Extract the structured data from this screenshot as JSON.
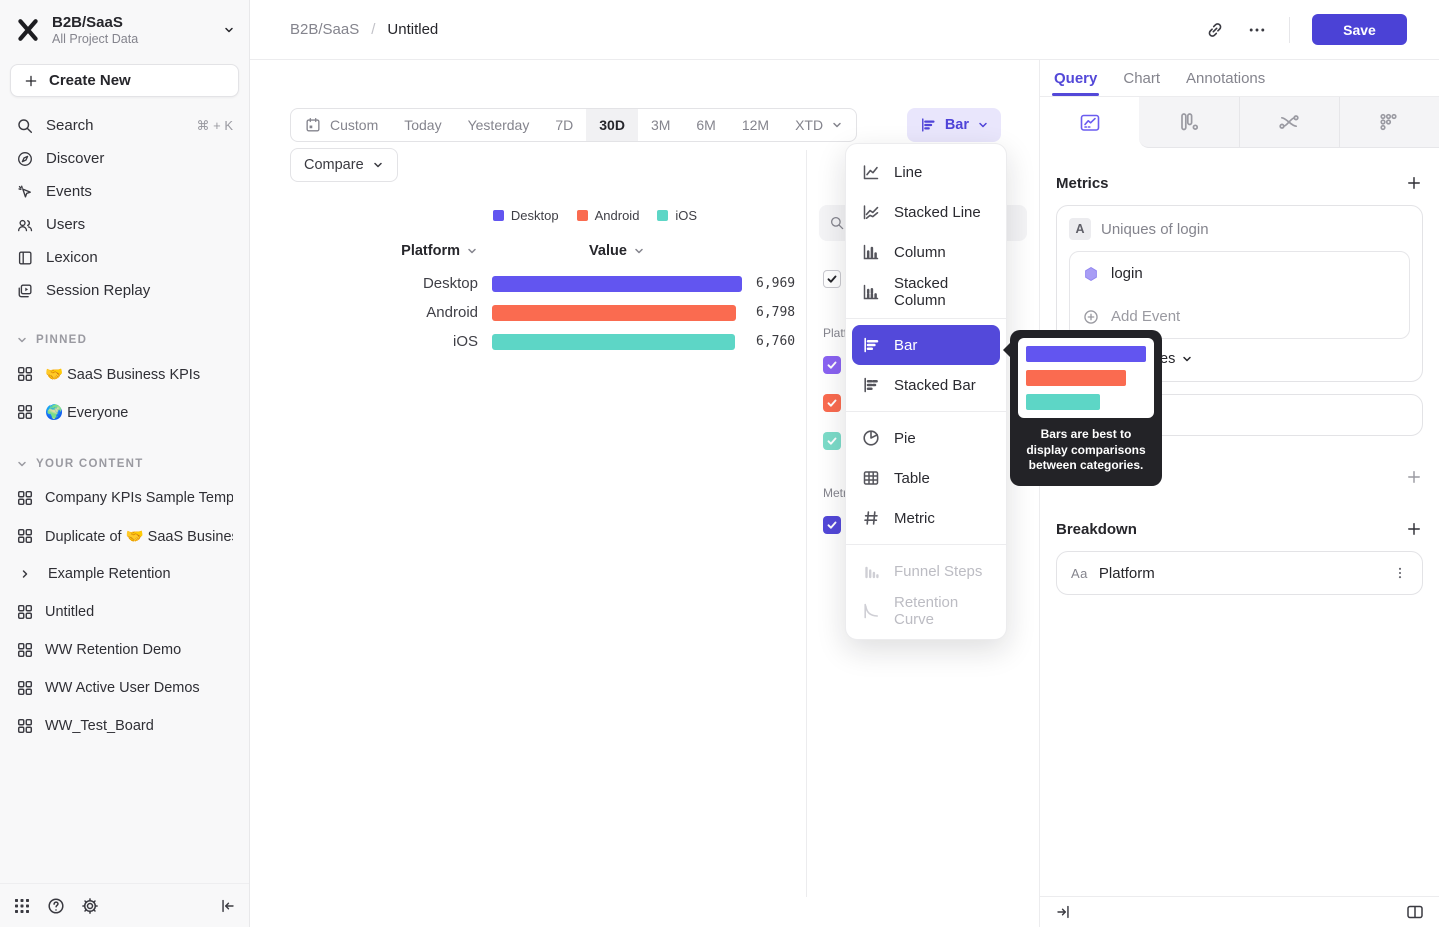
{
  "app": {
    "workspace_name": "B2B/SaaS",
    "workspace_subtitle": "All Project Data",
    "create_new_label": "Create New"
  },
  "sidebar": {
    "nav": [
      {
        "label": "Search",
        "shortcut": "⌘ + K"
      },
      {
        "label": "Discover"
      },
      {
        "label": "Events"
      },
      {
        "label": "Users"
      },
      {
        "label": "Lexicon"
      },
      {
        "label": "Session Replay"
      }
    ],
    "pinned_title": "PINNED",
    "pinned": [
      {
        "label": "🤝 SaaS Business KPIs"
      },
      {
        "label": "🌍 Everyone"
      }
    ],
    "your_content_title": "YOUR CONTENT",
    "content": [
      {
        "label": "Company KPIs Sample Templat"
      },
      {
        "label": "Duplicate of 🤝 SaaS Business"
      },
      {
        "label": "Example Retention"
      },
      {
        "label": "Untitled"
      },
      {
        "label": "WW Retention Demo"
      },
      {
        "label": "WW Active User Demos"
      },
      {
        "label": "WW_Test_Board"
      }
    ]
  },
  "topbar": {
    "breadcrumb_root": "B2B/SaaS",
    "breadcrumb_separator": "/",
    "breadcrumb_current": "Untitled",
    "save_label": "Save"
  },
  "toolbar": {
    "date_ranges": [
      "Custom",
      "Today",
      "Yesterday",
      "7D",
      "30D",
      "3M",
      "6M",
      "12M",
      "XTD"
    ],
    "selected_range": "30D",
    "chart_type_label": "Bar",
    "compare_label": "Compare"
  },
  "chart_data": {
    "type": "bar",
    "orientation": "horizontal",
    "metric": "Uniques of login",
    "columns": [
      "Platform",
      "Value"
    ],
    "categories": [
      "Desktop",
      "Android",
      "iOS"
    ],
    "values": [
      6969,
      6798,
      6760
    ],
    "value_labels": [
      "6,969",
      "6,798",
      "6,760"
    ],
    "legend": [
      "Desktop",
      "Android",
      "iOS"
    ],
    "series_colors": [
      "#6255F0",
      "#FA6B50",
      "#5DD6C6"
    ],
    "xlim": [
      0,
      6969
    ]
  },
  "legend_panel": {
    "platform_label": "Platform",
    "metrics_label": "Metrics"
  },
  "chart_menu": {
    "items": [
      {
        "label": "Line"
      },
      {
        "label": "Stacked Line"
      },
      {
        "label": "Column"
      },
      {
        "label": "Stacked Column"
      },
      {
        "label": "Bar",
        "selected": true
      },
      {
        "label": "Stacked Bar"
      },
      {
        "label": "Pie"
      },
      {
        "label": "Table"
      },
      {
        "label": "Metric"
      },
      {
        "label": "Funnel Steps",
        "disabled": true
      },
      {
        "label": "Retention Curve",
        "disabled": true
      }
    ],
    "tooltip_text": "Bars are best to display comparisons between categories."
  },
  "query_panel": {
    "tabs": [
      "Query",
      "Chart",
      "Annotations"
    ],
    "active_tab": "Query",
    "metrics_title": "Metrics",
    "metric_row_letter": "A",
    "metric_row_label": "Uniques of login",
    "event_name": "login",
    "add_event_label": "Add Event",
    "uniques_visible_text": "es",
    "breakdown_title": "Breakdown",
    "breakdown_property": "Platform",
    "breakdown_property_type": "Aa"
  },
  "colors": {
    "accent": "#4B42D6",
    "menu_selected": "#5349DA",
    "bar_desktop": "#6255F0",
    "bar_android": "#FA6B50",
    "bar_ios": "#5DD6C6",
    "tooltip_bg": "#232327"
  }
}
